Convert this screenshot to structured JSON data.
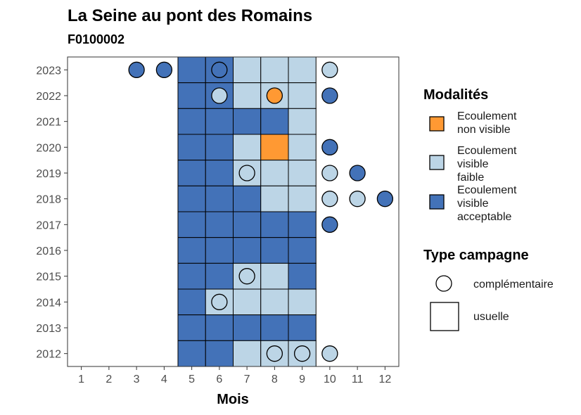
{
  "chart_data": {
    "type": "heatmap",
    "title": "La Seine au pont des Romains",
    "subtitle": "F0100002",
    "xlabel": "Mois",
    "ylabel": "",
    "x_ticks": [
      1,
      2,
      3,
      4,
      5,
      6,
      7,
      8,
      9,
      10,
      11,
      12
    ],
    "y_ticks": [
      2012,
      2013,
      2014,
      2015,
      2016,
      2017,
      2018,
      2019,
      2020,
      2021,
      2022,
      2023
    ],
    "xlim": [
      0.5,
      12.5
    ],
    "ylim": [
      2011.5,
      2023.5
    ],
    "colors": {
      "non_visible": "#FF9933",
      "faible": "#BCD5E6",
      "acceptable": "#4372B8"
    },
    "legend": {
      "modalites_title": "Modalités",
      "modalites": [
        {
          "key": "non_visible",
          "lines": [
            "Ecoulement",
            "non visible"
          ]
        },
        {
          "key": "faible",
          "lines": [
            "Ecoulement",
            "visible",
            "faible"
          ]
        },
        {
          "key": "acceptable",
          "lines": [
            "Ecoulement",
            "visible",
            "acceptable"
          ]
        }
      ],
      "type_title": "Type campagne",
      "types": [
        {
          "key": "complementaire",
          "label": "complémentaire"
        },
        {
          "key": "usuelle",
          "label": "usuelle"
        }
      ]
    },
    "observations": [
      {
        "year": 2023,
        "month": 3,
        "type": "complementaire",
        "status": "acceptable"
      },
      {
        "year": 2023,
        "month": 4,
        "type": "complementaire",
        "status": "acceptable"
      },
      {
        "year": 2023,
        "month": 5,
        "type": "usuelle",
        "status": "acceptable"
      },
      {
        "year": 2023,
        "month": 6,
        "type": "usuelle",
        "status": "acceptable"
      },
      {
        "year": 2023,
        "month": 6,
        "type": "complementaire",
        "status": "acceptable"
      },
      {
        "year": 2023,
        "month": 7,
        "type": "usuelle",
        "status": "faible"
      },
      {
        "year": 2023,
        "month": 8,
        "type": "usuelle",
        "status": "faible"
      },
      {
        "year": 2023,
        "month": 9,
        "type": "usuelle",
        "status": "faible"
      },
      {
        "year": 2023,
        "month": 10,
        "type": "complementaire",
        "status": "faible"
      },
      {
        "year": 2022,
        "month": 5,
        "type": "usuelle",
        "status": "acceptable"
      },
      {
        "year": 2022,
        "month": 6,
        "type": "usuelle",
        "status": "acceptable"
      },
      {
        "year": 2022,
        "month": 6,
        "type": "complementaire",
        "status": "faible"
      },
      {
        "year": 2022,
        "month": 7,
        "type": "usuelle",
        "status": "faible"
      },
      {
        "year": 2022,
        "month": 8,
        "type": "usuelle",
        "status": "faible"
      },
      {
        "year": 2022,
        "month": 8,
        "type": "complementaire",
        "status": "non_visible"
      },
      {
        "year": 2022,
        "month": 9,
        "type": "usuelle",
        "status": "faible"
      },
      {
        "year": 2022,
        "month": 10,
        "type": "complementaire",
        "status": "acceptable"
      },
      {
        "year": 2021,
        "month": 5,
        "type": "usuelle",
        "status": "acceptable"
      },
      {
        "year": 2021,
        "month": 6,
        "type": "usuelle",
        "status": "acceptable"
      },
      {
        "year": 2021,
        "month": 7,
        "type": "usuelle",
        "status": "acceptable"
      },
      {
        "year": 2021,
        "month": 8,
        "type": "usuelle",
        "status": "acceptable"
      },
      {
        "year": 2021,
        "month": 9,
        "type": "usuelle",
        "status": "faible"
      },
      {
        "year": 2020,
        "month": 5,
        "type": "usuelle",
        "status": "acceptable"
      },
      {
        "year": 2020,
        "month": 6,
        "type": "usuelle",
        "status": "acceptable"
      },
      {
        "year": 2020,
        "month": 7,
        "type": "usuelle",
        "status": "faible"
      },
      {
        "year": 2020,
        "month": 8,
        "type": "usuelle",
        "status": "non_visible"
      },
      {
        "year": 2020,
        "month": 9,
        "type": "usuelle",
        "status": "faible"
      },
      {
        "year": 2020,
        "month": 10,
        "type": "complementaire",
        "status": "acceptable"
      },
      {
        "year": 2019,
        "month": 5,
        "type": "usuelle",
        "status": "acceptable"
      },
      {
        "year": 2019,
        "month": 6,
        "type": "usuelle",
        "status": "acceptable"
      },
      {
        "year": 2019,
        "month": 7,
        "type": "usuelle",
        "status": "faible"
      },
      {
        "year": 2019,
        "month": 7,
        "type": "complementaire",
        "status": "faible"
      },
      {
        "year": 2019,
        "month": 8,
        "type": "usuelle",
        "status": "faible"
      },
      {
        "year": 2019,
        "month": 9,
        "type": "usuelle",
        "status": "faible"
      },
      {
        "year": 2019,
        "month": 10,
        "type": "complementaire",
        "status": "faible"
      },
      {
        "year": 2019,
        "month": 11,
        "type": "complementaire",
        "status": "acceptable"
      },
      {
        "year": 2018,
        "month": 5,
        "type": "usuelle",
        "status": "acceptable"
      },
      {
        "year": 2018,
        "month": 6,
        "type": "usuelle",
        "status": "acceptable"
      },
      {
        "year": 2018,
        "month": 7,
        "type": "usuelle",
        "status": "acceptable"
      },
      {
        "year": 2018,
        "month": 8,
        "type": "usuelle",
        "status": "faible"
      },
      {
        "year": 2018,
        "month": 9,
        "type": "usuelle",
        "status": "faible"
      },
      {
        "year": 2018,
        "month": 10,
        "type": "complementaire",
        "status": "faible"
      },
      {
        "year": 2018,
        "month": 11,
        "type": "complementaire",
        "status": "faible"
      },
      {
        "year": 2018,
        "month": 12,
        "type": "complementaire",
        "status": "acceptable"
      },
      {
        "year": 2017,
        "month": 5,
        "type": "usuelle",
        "status": "acceptable"
      },
      {
        "year": 2017,
        "month": 6,
        "type": "usuelle",
        "status": "acceptable"
      },
      {
        "year": 2017,
        "month": 7,
        "type": "usuelle",
        "status": "acceptable"
      },
      {
        "year": 2017,
        "month": 8,
        "type": "usuelle",
        "status": "acceptable"
      },
      {
        "year": 2017,
        "month": 9,
        "type": "usuelle",
        "status": "acceptable"
      },
      {
        "year": 2017,
        "month": 10,
        "type": "complementaire",
        "status": "acceptable"
      },
      {
        "year": 2016,
        "month": 5,
        "type": "usuelle",
        "status": "acceptable"
      },
      {
        "year": 2016,
        "month": 6,
        "type": "usuelle",
        "status": "acceptable"
      },
      {
        "year": 2016,
        "month": 7,
        "type": "usuelle",
        "status": "acceptable"
      },
      {
        "year": 2016,
        "month": 8,
        "type": "usuelle",
        "status": "acceptable"
      },
      {
        "year": 2016,
        "month": 9,
        "type": "usuelle",
        "status": "acceptable"
      },
      {
        "year": 2015,
        "month": 5,
        "type": "usuelle",
        "status": "acceptable"
      },
      {
        "year": 2015,
        "month": 6,
        "type": "usuelle",
        "status": "acceptable"
      },
      {
        "year": 2015,
        "month": 7,
        "type": "usuelle",
        "status": "faible"
      },
      {
        "year": 2015,
        "month": 7,
        "type": "complementaire",
        "status": "faible"
      },
      {
        "year": 2015,
        "month": 8,
        "type": "usuelle",
        "status": "faible"
      },
      {
        "year": 2015,
        "month": 9,
        "type": "usuelle",
        "status": "acceptable"
      },
      {
        "year": 2014,
        "month": 5,
        "type": "usuelle",
        "status": "acceptable"
      },
      {
        "year": 2014,
        "month": 6,
        "type": "usuelle",
        "status": "faible"
      },
      {
        "year": 2014,
        "month": 6,
        "type": "complementaire",
        "status": "faible"
      },
      {
        "year": 2014,
        "month": 7,
        "type": "usuelle",
        "status": "faible"
      },
      {
        "year": 2014,
        "month": 8,
        "type": "usuelle",
        "status": "faible"
      },
      {
        "year": 2014,
        "month": 9,
        "type": "usuelle",
        "status": "faible"
      },
      {
        "year": 2013,
        "month": 5,
        "type": "usuelle",
        "status": "acceptable"
      },
      {
        "year": 2013,
        "month": 6,
        "type": "usuelle",
        "status": "acceptable"
      },
      {
        "year": 2013,
        "month": 7,
        "type": "usuelle",
        "status": "acceptable"
      },
      {
        "year": 2013,
        "month": 8,
        "type": "usuelle",
        "status": "acceptable"
      },
      {
        "year": 2013,
        "month": 9,
        "type": "usuelle",
        "status": "acceptable"
      },
      {
        "year": 2012,
        "month": 5,
        "type": "usuelle",
        "status": "acceptable"
      },
      {
        "year": 2012,
        "month": 6,
        "type": "usuelle",
        "status": "acceptable"
      },
      {
        "year": 2012,
        "month": 7,
        "type": "usuelle",
        "status": "faible"
      },
      {
        "year": 2012,
        "month": 8,
        "type": "usuelle",
        "status": "faible"
      },
      {
        "year": 2012,
        "month": 8,
        "type": "complementaire",
        "status": "faible"
      },
      {
        "year": 2012,
        "month": 9,
        "type": "usuelle",
        "status": "faible"
      },
      {
        "year": 2012,
        "month": 9,
        "type": "complementaire",
        "status": "faible"
      },
      {
        "year": 2012,
        "month": 10,
        "type": "complementaire",
        "status": "faible"
      }
    ]
  }
}
